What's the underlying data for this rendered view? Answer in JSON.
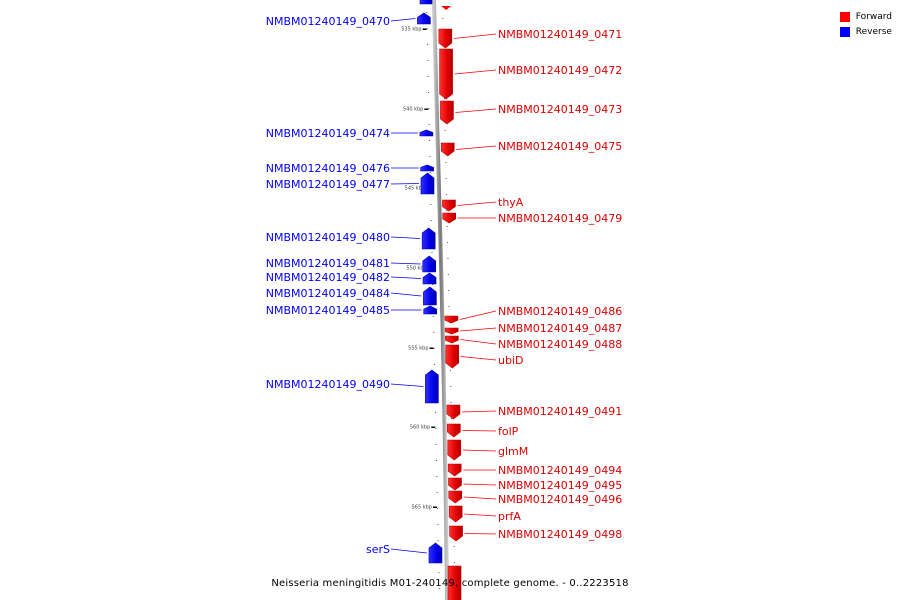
{
  "caption": "Neisseria meningitidis M01-240149, complete genome. - 0..2223518",
  "legend": {
    "forward_label": "Forward",
    "reverse_label": "Reverse",
    "forward_color": "#ff0000",
    "reverse_color": "#0000ff"
  },
  "axis": {
    "ticks": [
      "535 kbp",
      "540 kbp",
      "545 kbp",
      "550 kbp",
      "555 kbp",
      "560 kbp",
      "565 kbp"
    ]
  },
  "genes": {
    "reverse": [
      "NMBM01240149_0470",
      "NMBM01240149_0474",
      "NMBM01240149_0476",
      "NMBM01240149_0477",
      "NMBM01240149_0480",
      "NMBM01240149_0481",
      "NMBM01240149_0482",
      "NMBM01240149_0484",
      "NMBM01240149_0485",
      "NMBM01240149_0490",
      "serS"
    ],
    "forward": [
      "NMBM01240149_0471",
      "NMBM01240149_0472",
      "NMBM01240149_0473",
      "NMBM01240149_0475",
      "thyA",
      "NMBM01240149_0479",
      "NMBM01240149_0486",
      "NMBM01240149_0487",
      "NMBM01240149_0488",
      "ubiD",
      "NMBM01240149_0491",
      "folP",
      "glmM",
      "NMBM01240149_0494",
      "NMBM01240149_0495",
      "NMBM01240149_0496",
      "prfA",
      "NMBM01240149_0498"
    ]
  }
}
